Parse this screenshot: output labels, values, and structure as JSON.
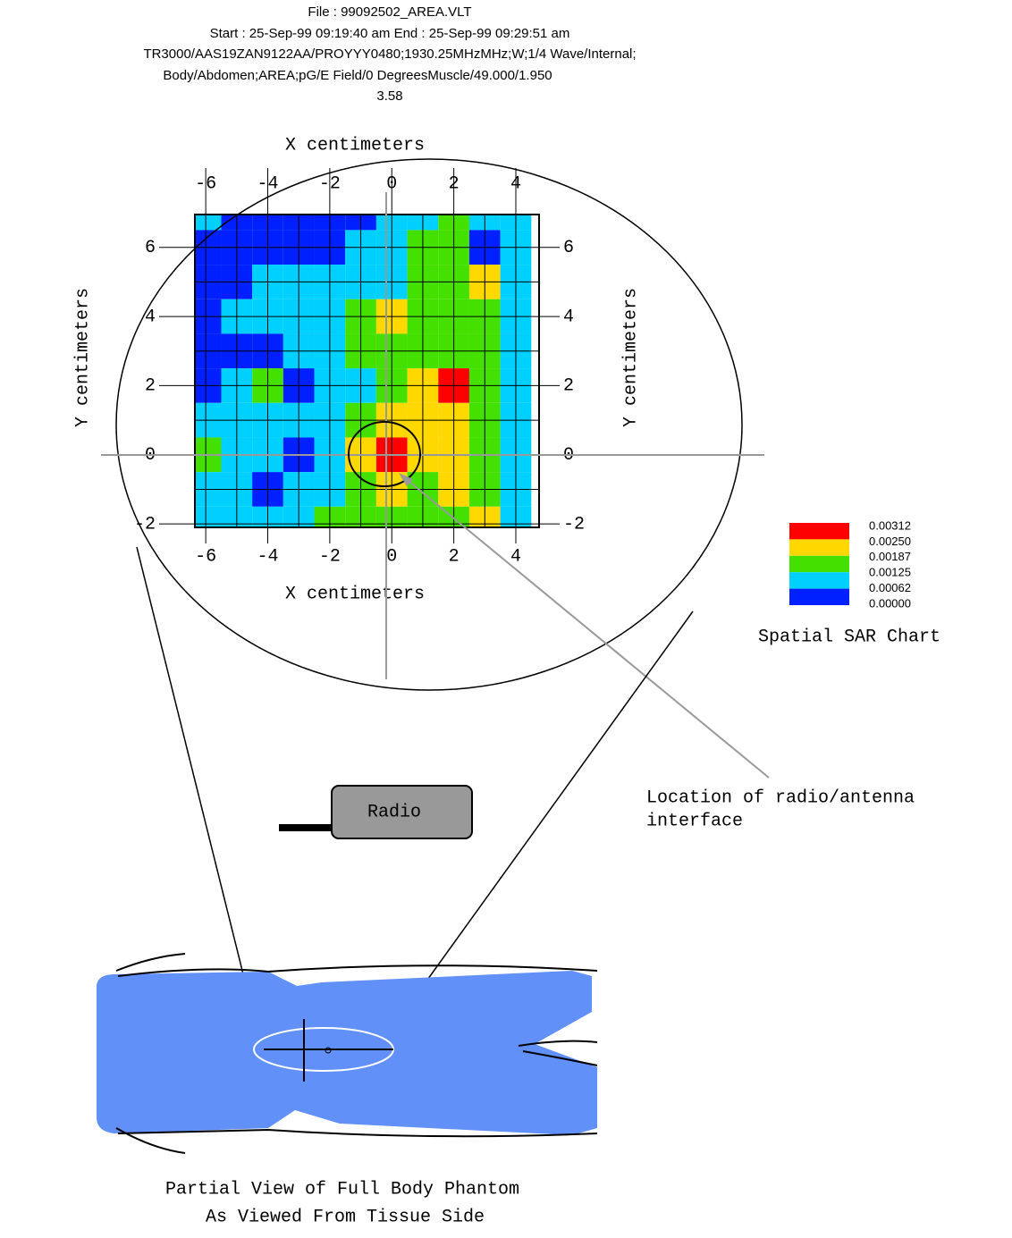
{
  "header": {
    "lines": [
      "File : 99092502_AREA.VLT",
      "Start : 25-Sep-99 09:19:40 am  End : 25-Sep-99 09:29:51 am",
      "TR3000/AAS19ZAN9122AA/PROYYY0480;1930.25MHzMHz;W;1/4 Wave/Internal;",
      "Body/Abdomen;AREA;pG/E Field/0 DegreesMuscle/49.000/1.950",
      "3.58"
    ]
  },
  "chart_data": {
    "type": "contour",
    "x_label": "X centimeters",
    "y_label": "Y centimeters",
    "xlim": [
      -6.35,
      4.75
    ],
    "ylim": [
      -2.1,
      6.95
    ],
    "xticks": [
      -6,
      -4,
      -2,
      0,
      2,
      4
    ],
    "yticks": [
      -2,
      0,
      2,
      4,
      6
    ],
    "grid": true,
    "x": [
      -6,
      -5,
      -4,
      -3,
      -2,
      -1,
      0,
      1,
      2,
      3,
      4
    ],
    "y": [
      7,
      6,
      5,
      4,
      3,
      2,
      1,
      0,
      -1,
      -2
    ],
    "z": [
      [
        0.0009,
        0.0003,
        0.0003,
        0.0003,
        0.0003,
        0.0003,
        0.0009,
        0.0009,
        0.0016,
        0.0009,
        0.0009
      ],
      [
        0.0003,
        0.0003,
        0.0003,
        0.0003,
        0.0003,
        0.0009,
        0.0009,
        0.0016,
        0.0016,
        0.0003,
        0.0009
      ],
      [
        0.0003,
        0.0003,
        0.0009,
        0.0009,
        0.0009,
        0.0009,
        0.0009,
        0.0016,
        0.0016,
        0.0022,
        0.0009
      ],
      [
        0.0003,
        0.0009,
        0.0009,
        0.0009,
        0.0009,
        0.0016,
        0.0022,
        0.0016,
        0.0016,
        0.0016,
        0.0009
      ],
      [
        0.0003,
        0.0003,
        0.0003,
        0.0009,
        0.0009,
        0.0016,
        0.0016,
        0.0016,
        0.0016,
        0.0016,
        0.0009
      ],
      [
        0.0003,
        0.0009,
        0.0016,
        0.0003,
        0.0009,
        0.0009,
        0.0016,
        0.0022,
        0.0028,
        0.0016,
        0.0009
      ],
      [
        0.0009,
        0.0009,
        0.0009,
        0.0009,
        0.0009,
        0.0016,
        0.0022,
        0.0022,
        0.0022,
        0.0016,
        0.0009
      ],
      [
        0.0016,
        0.0009,
        0.0009,
        0.0003,
        0.0009,
        0.0022,
        0.0028,
        0.0022,
        0.0022,
        0.0016,
        0.0009
      ],
      [
        0.0009,
        0.0009,
        0.0003,
        0.0009,
        0.0009,
        0.0016,
        0.0022,
        0.0016,
        0.0022,
        0.0016,
        0.0009
      ],
      [
        0.0009,
        0.0009,
        0.0009,
        0.0009,
        0.0016,
        0.0016,
        0.0016,
        0.0016,
        0.0016,
        0.0022,
        0.0009
      ]
    ],
    "legend": {
      "title": "Spatial SAR Chart",
      "levels": [
        0.00312,
        {
          "value": 0.0025,
          "label": "0.00250"
        },
        0.00187,
        0.00125,
        0.00062,
        {
          "value": 0,
          "label": "0.00000"
        }
      ],
      "colors": [
        "#ff0000",
        "#ffd800",
        "#44e000",
        "#00d0ff",
        "#0020ff"
      ]
    }
  },
  "annotations": {
    "interface": [
      "Location of radio/antenna",
      "interface"
    ],
    "radio": "Radio",
    "phantom": [
      "Partial View of Full Body Phantom",
      "As Viewed From Tissue Side"
    ]
  }
}
